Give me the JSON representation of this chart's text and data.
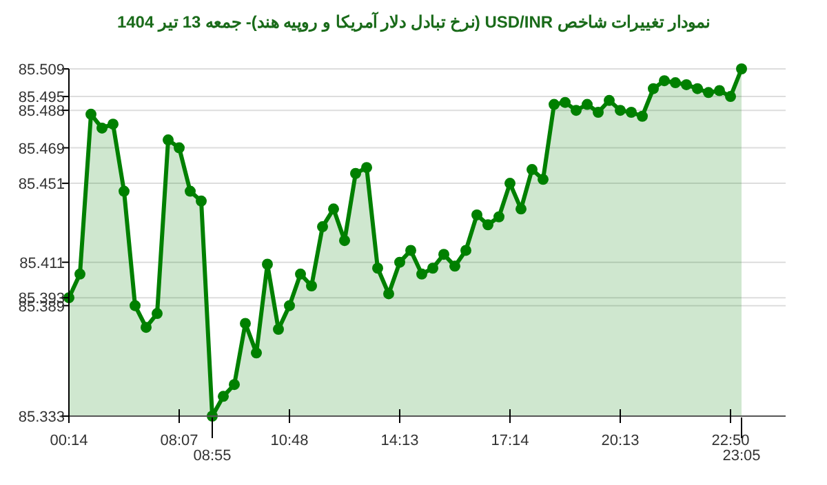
{
  "chart_data": {
    "type": "area",
    "title": "نمودار تغییرات شاخص USD/INR (نرخ تبادل دلار آمریکا و روپیه هند)- جمعه  13 تیر 1404",
    "categories": [
      "00:14",
      null,
      null,
      null,
      null,
      null,
      null,
      null,
      null,
      null,
      "08:07",
      null,
      null,
      "08:55",
      null,
      null,
      null,
      null,
      null,
      null,
      "10:48",
      null,
      null,
      null,
      null,
      null,
      null,
      null,
      null,
      null,
      "14:13",
      null,
      null,
      null,
      null,
      null,
      null,
      null,
      null,
      null,
      "17:14",
      null,
      null,
      null,
      null,
      null,
      null,
      null,
      null,
      null,
      "20:13",
      null,
      null,
      null,
      null,
      null,
      null,
      null,
      null,
      null,
      "22:50",
      "23:05"
    ],
    "series": [
      {
        "color": "#008000",
        "values": [
          85.393,
          85.405,
          85.486,
          85.479,
          85.481,
          85.447,
          85.389,
          85.378,
          85.385,
          85.473,
          85.469,
          85.447,
          85.442,
          85.333,
          85.343,
          85.349,
          85.38,
          85.365,
          85.41,
          85.377,
          85.389,
          85.405,
          85.399,
          85.429,
          85.438,
          85.422,
          85.456,
          85.459,
          85.408,
          85.395,
          85.411,
          85.417,
          85.405,
          85.408,
          85.415,
          85.409,
          85.417,
          85.435,
          85.43,
          85.434,
          85.451,
          85.438,
          85.458,
          85.453,
          85.491,
          85.492,
          85.488,
          85.491,
          85.487,
          85.493,
          85.488,
          85.487,
          85.485,
          85.499,
          85.503,
          85.502,
          85.501,
          85.499,
          85.497,
          85.498,
          85.495,
          85.509
        ]
      }
    ],
    "ylim": [
      85.333,
      85.509
    ],
    "yticks": [
      85.333,
      85.389,
      85.393,
      85.411,
      85.451,
      85.469,
      85.488,
      85.495,
      85.509
    ],
    "grid": "y",
    "marker": "circle"
  }
}
